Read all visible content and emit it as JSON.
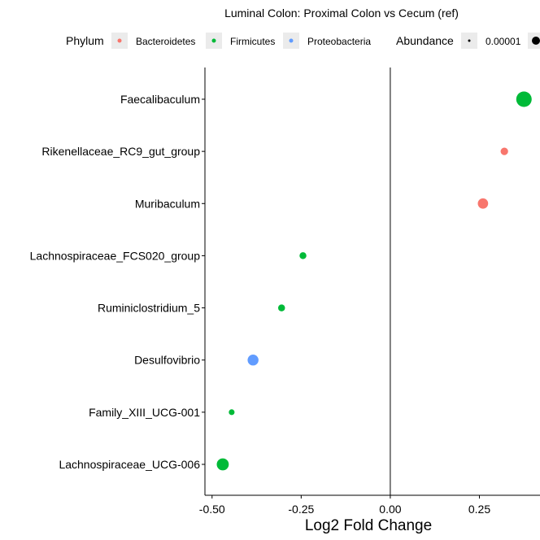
{
  "chart_data": {
    "type": "scatter",
    "title": "Luminal Colon: Proximal Colon vs Cecum (ref)",
    "xlabel": "Log2 Fold Change",
    "ylabel": "",
    "xlim": [
      -0.52,
      0.42
    ],
    "xticks": [
      -0.5,
      -0.25,
      0,
      0.25
    ],
    "xtick_labels": [
      "-0.50",
      "-0.25",
      "0.00",
      "0.25"
    ],
    "reference_line_x": 0,
    "grid": false,
    "legend_position": "top",
    "categories": [
      "Faecalibaculum",
      "Rikenellaceae_RC9_gut_group",
      "Muribaculum",
      "Lachnospiraceae_FCS020_group",
      "Ruminiclostridium_5",
      "Desulfovibrio",
      "Family_XIII_UCG-001",
      "Lachnospiraceae_UCG-006"
    ],
    "points": [
      {
        "genus": "Faecalibaculum",
        "x": 0.375,
        "phylum": "Firmicutes",
        "size": 1.0
      },
      {
        "genus": "Rikenellaceae_RC9_gut_group",
        "x": 0.32,
        "phylum": "Bacteroidetes",
        "size": 0.3
      },
      {
        "genus": "Muribaculum",
        "x": 0.26,
        "phylum": "Bacteroidetes",
        "size": 0.55
      },
      {
        "genus": "Lachnospiraceae_FCS020_group",
        "x": -0.245,
        "phylum": "Firmicutes",
        "size": 0.25
      },
      {
        "genus": "Ruminiclostridium_5",
        "x": -0.305,
        "phylum": "Firmicutes",
        "size": 0.25
      },
      {
        "genus": "Desulfovibrio",
        "x": -0.385,
        "phylum": "Proteobacteria",
        "size": 0.6
      },
      {
        "genus": "Family_XIII_UCG-001",
        "x": -0.445,
        "phylum": "Firmicutes",
        "size": 0.15
      },
      {
        "genus": "Lachnospiraceae_UCG-006",
        "x": -0.47,
        "phylum": "Firmicutes",
        "size": 0.7
      }
    ],
    "legend": {
      "phylum_title": "Phylum",
      "phylum_entries": [
        {
          "name": "Bacteroidetes",
          "color": "#F8766D"
        },
        {
          "name": "Firmicutes",
          "color": "#00BA38"
        },
        {
          "name": "Proteobacteria",
          "color": "#619CFF"
        }
      ],
      "abundance_title": "Abundance",
      "abundance_entries": [
        "0.00001"
      ]
    }
  }
}
